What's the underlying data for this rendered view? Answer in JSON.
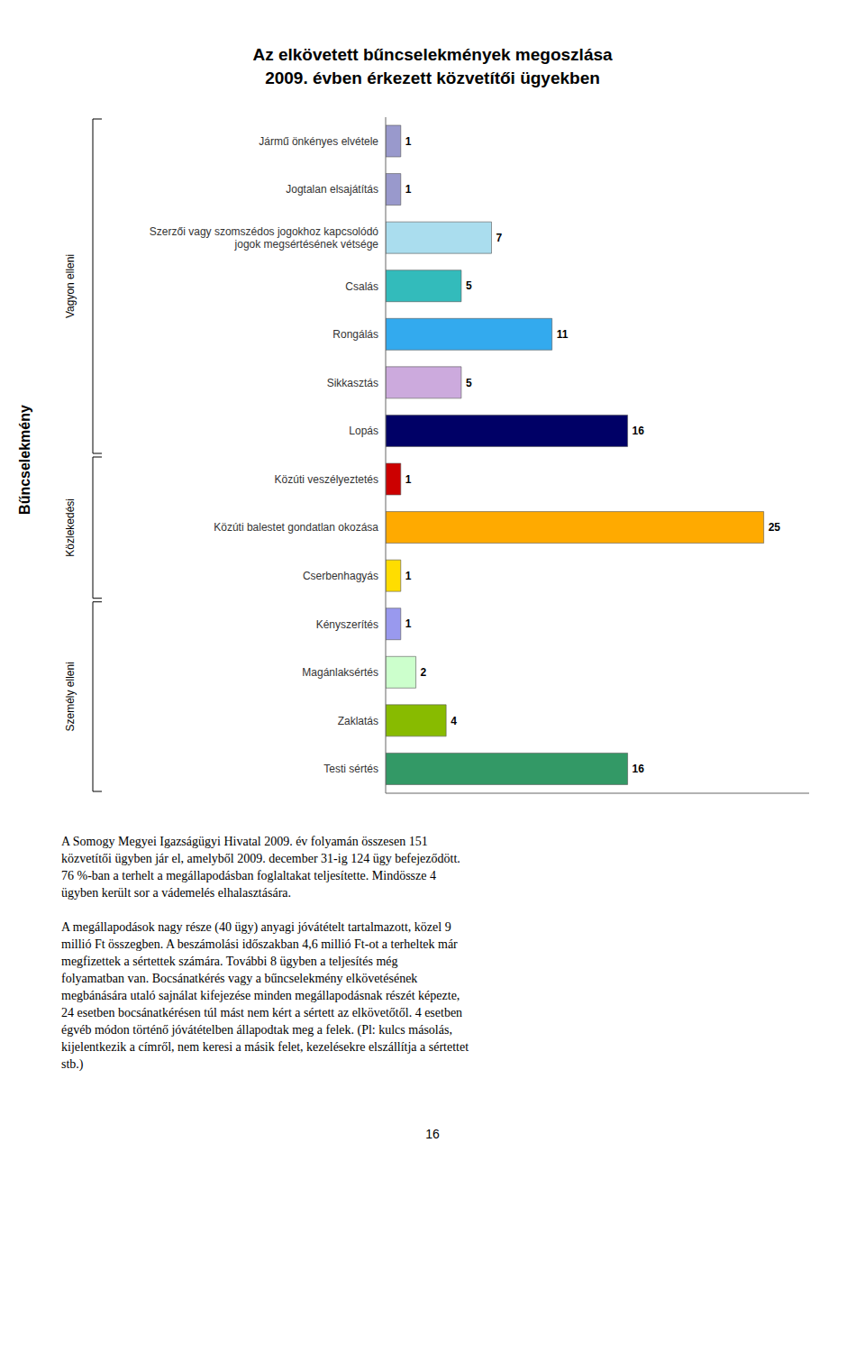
{
  "chart_data": {
    "type": "bar",
    "orientation": "horizontal",
    "title": "Az elkövetett bűncselekmények megoszlása",
    "subtitle": "2009. évben érkezett közvetítői ügyekben",
    "ylabel": "Bűncselekmény",
    "categories": [
      "Jármű önkényes elvétele",
      "Jogtalan elsajátítás",
      "Szerzői vagy szomszédos jogokhoz kapcsolódó\njogok megsértésének vétsége",
      "Csalás",
      "Rongálás",
      "Sikkasztás",
      "Lopás",
      "Közúti veszélyeztetés",
      "Közúti balestet gondatlan okozása",
      "Cserbenhagyás",
      "Kényszerítés",
      "Magánlaksértés",
      "Zaklatás",
      "Testi sértés"
    ],
    "values": [
      1,
      1,
      7,
      5,
      11,
      5,
      16,
      1,
      25,
      1,
      1,
      2,
      4,
      16
    ],
    "colors": [
      "#9999CC",
      "#9999CC",
      "#AADDEE",
      "#33BBBB",
      "#33AAEE",
      "#CCAADD",
      "#000066",
      "#CC0000",
      "#FFAA00",
      "#FFDD00",
      "#9999EE",
      "#CCFFCC",
      "#88BB00",
      "#339966"
    ],
    "xlim": [
      0,
      28
    ],
    "tick_labels": "y",
    "data_labels": true,
    "groups": [
      {
        "label": "Vagyon elleni",
        "start": 0,
        "end": 6
      },
      {
        "label": "Közlekedési",
        "start": 7,
        "end": 9
      },
      {
        "label": "Személy elleni",
        "start": 10,
        "end": 13
      }
    ],
    "body_text": "A Somogy Megyei Igazságügyi Hivatal 2009. év folyamán összesen 151\nközvetítői ügyben jár el, amelyből 2009. december 31-ig 124 ügy befejeződött.\n76 %-ban a terhelt a megállapodásban foglaltakat teljesítette. Mindössze 4\nügyben került sor a vádemelés elhalasztására.\n\nA megállapodások nagy része (40 ügy) anyagi jóvátételt tartalmazott, közel 9\nmillió Ft összegben. A beszámolási időszakban 4,6 millió Ft-ot a terheltek már\nmegfizettek a sértettek számára. További 8 ügyben a teljesítés még\nfolyamatban van. Bocsánatkérés vagy a bűncselekmény elkövetésének\nmegbánására utaló sajnálat kifejezése minden megállapodásnak részét képezte,\n24 esetben bocsánatkérésen túl mást nem kért a sértett az elkövetőtől. 4 esetben\négvéb módon történő jóvátételben állapodtak meg a felek. (Pl: kulcs másolás,\nkijelentkezik a címről, nem keresi a másik felet, kezelésekre elszállítja a sértettet\nstb.)",
    "page_number": "16"
  }
}
